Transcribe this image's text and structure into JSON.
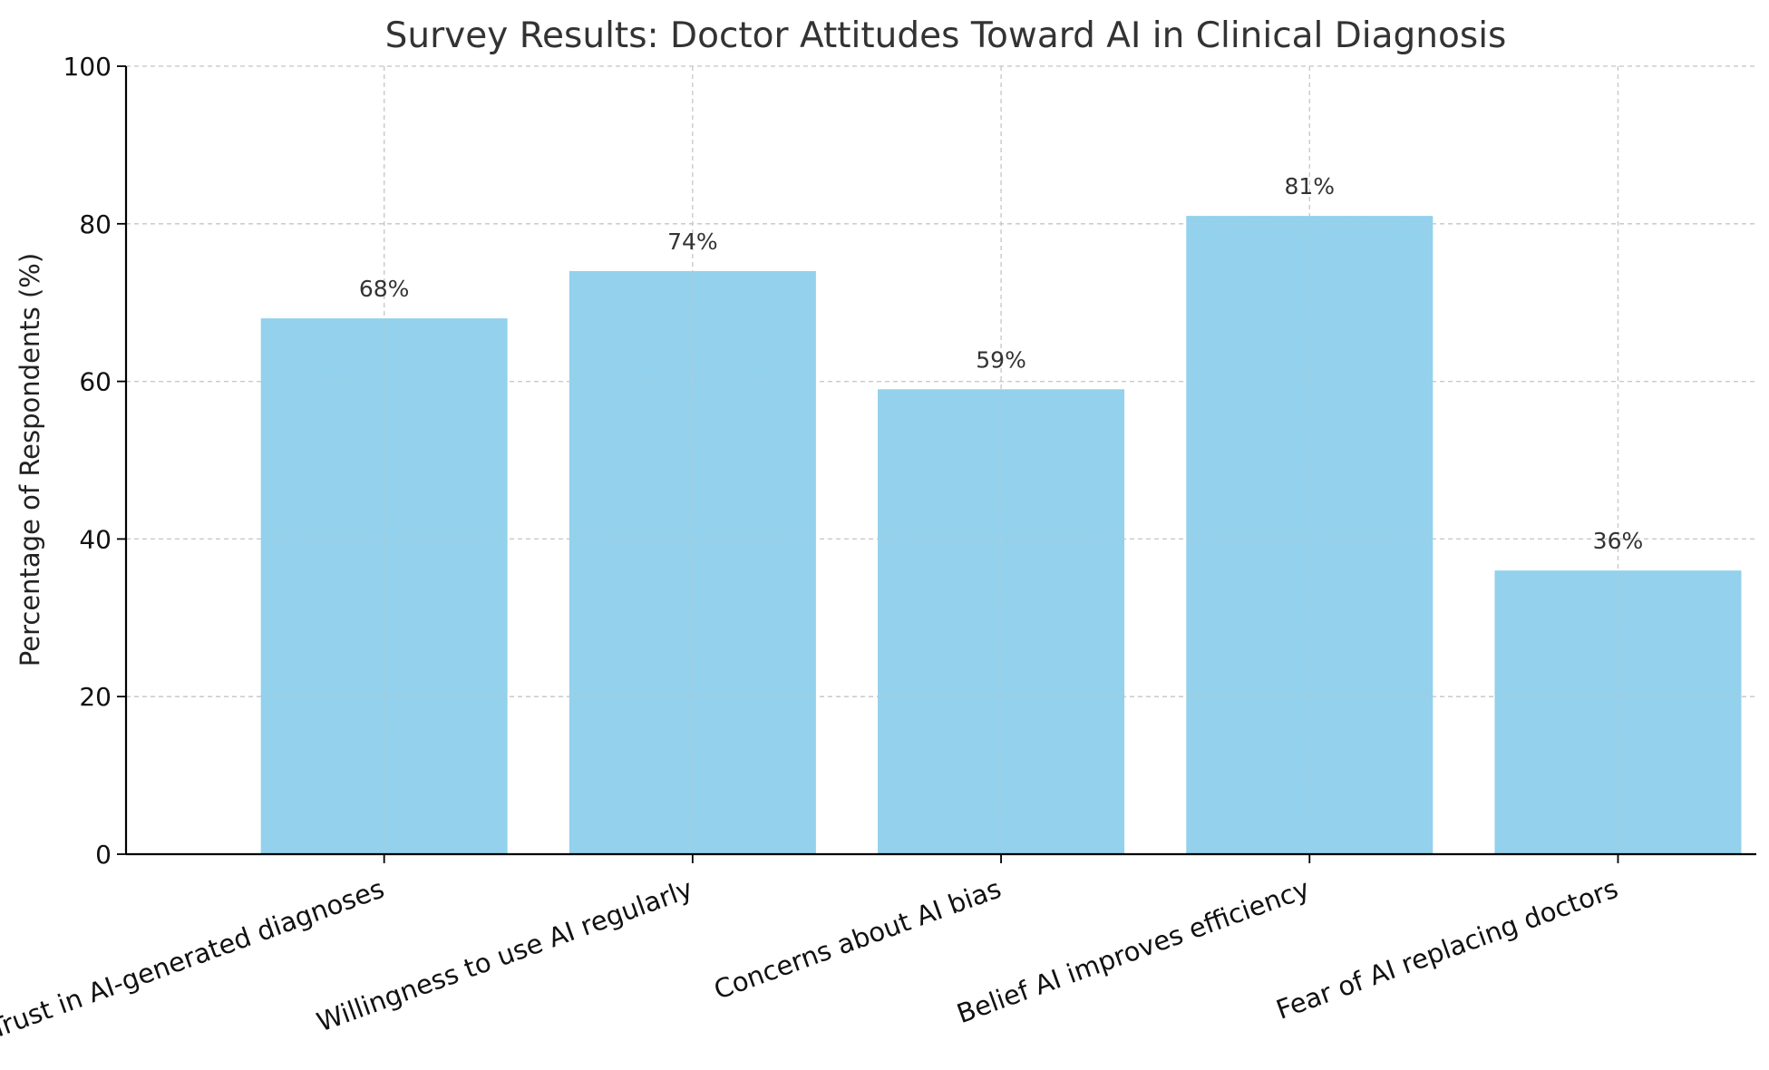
{
  "chart_data": {
    "type": "bar",
    "title": "Survey Results: Doctor Attitudes Toward AI in Clinical Diagnosis",
    "xlabel": "",
    "ylabel": "Percentage of Respondents (%)",
    "ylim": [
      0,
      100
    ],
    "y_ticks": [
      0,
      20,
      40,
      60,
      80,
      100
    ],
    "grid": true,
    "categories": [
      "Trust in AI-generated diagnoses",
      "Willingness to use AI regularly",
      "Concerns about AI bias",
      "Belief AI improves efficiency",
      "Fear of AI replacing doctors"
    ],
    "values": [
      68,
      74,
      59,
      81,
      36
    ],
    "data_labels": [
      "68%",
      "74%",
      "59%",
      "81%",
      "36%"
    ],
    "colors": {
      "bar": "#93d1ec",
      "grid": "#c8c8c8",
      "axis": "#000000",
      "title": "#333333"
    }
  }
}
